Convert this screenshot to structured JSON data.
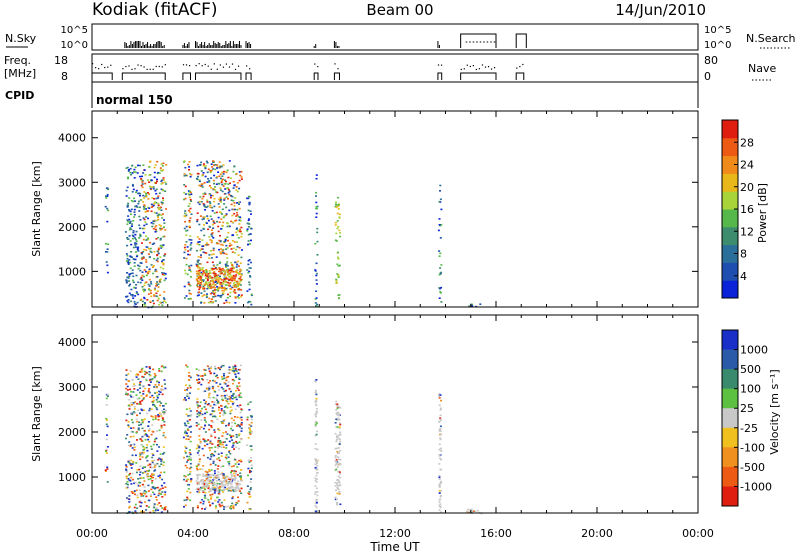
{
  "header": {
    "radar": "Kodiak (fitACF)",
    "beam": "Beam 00",
    "date": "14/Jun/2010"
  },
  "strip_labels": {
    "nsky": "N.Sky",
    "freq_line1": "Freq.",
    "freq_line2": "[MHz]",
    "cpid": "CPID",
    "nsearch": "N.Search",
    "nave": "Nave",
    "cpid_value": "normal 150"
  },
  "strip_ticks": {
    "nsky_left": [
      "10^5",
      "10^0"
    ],
    "nsky_right": [
      "10^5",
      "10^0"
    ],
    "freq_left": [
      "18",
      "8"
    ],
    "nave_right": [
      "80",
      "0"
    ]
  },
  "colors": {
    "power": [
      "#0a22d8",
      "#1e4fb0",
      "#2a6e9a",
      "#3d8c6e",
      "#56b84a",
      "#a8d43a",
      "#e8b81a",
      "#f08a1a",
      "#ec5a14",
      "#e01e10"
    ],
    "velocity": [
      "#1a2fc8",
      "#2a5aa8",
      "#3a8a6e",
      "#5cc040",
      "#c8c8c8",
      "#f0c01e",
      "#f0901e",
      "#ec5a14",
      "#e01e10"
    ]
  },
  "chart_data": [
    {
      "type": "heatmap",
      "panel": "power",
      "xlabel": "",
      "ylabel": "Slant Range [km]",
      "ylim": [
        200,
        4600
      ],
      "xlim_hours": [
        0,
        24
      ],
      "yticks": [
        1000,
        2000,
        3000,
        4000
      ],
      "colorbar": {
        "label": "Power [dB]",
        "range": [
          0,
          32
        ],
        "ticks": [
          4,
          8,
          12,
          16,
          20,
          24,
          28
        ]
      },
      "scatter_regions": [
        {
          "t": [
            0.5,
            0.6
          ],
          "r": [
            900,
            2900
          ],
          "level": "low"
        },
        {
          "t": [
            1.3,
            1.9
          ],
          "r": [
            200,
            3400
          ],
          "level": "low"
        },
        {
          "t": [
            1.9,
            2.9
          ],
          "r": [
            200,
            3500
          ],
          "level": "mixed"
        },
        {
          "t": [
            3.6,
            3.9
          ],
          "r": [
            300,
            3500
          ],
          "level": "mixed"
        },
        {
          "t": [
            4.1,
            5.9
          ],
          "r": [
            300,
            3500
          ],
          "level": "mixed"
        },
        {
          "t": [
            4.1,
            5.9
          ],
          "r": [
            600,
            1100
          ],
          "level": "high"
        },
        {
          "t": [
            6.1,
            6.3
          ],
          "r": [
            200,
            2700
          ],
          "level": "low"
        },
        {
          "t": [
            8.8,
            8.9
          ],
          "r": [
            200,
            3200
          ],
          "level": "low"
        },
        {
          "t": [
            9.6,
            9.8
          ],
          "r": [
            400,
            2700
          ],
          "level": "mid"
        },
        {
          "t": [
            13.7,
            13.8
          ],
          "r": [
            200,
            3000
          ],
          "level": "low"
        },
        {
          "t": [
            14.8,
            15.4
          ],
          "r": [
            200,
            300
          ],
          "level": "low"
        }
      ]
    },
    {
      "type": "heatmap",
      "panel": "velocity",
      "xlabel": "Time UT",
      "ylabel": "Slant Range [km]",
      "ylim": [
        200,
        4600
      ],
      "xlim_hours": [
        0,
        24
      ],
      "yticks": [
        1000,
        2000,
        3000,
        4000
      ],
      "xtick_labels": [
        "00:00",
        "04:00",
        "08:00",
        "12:00",
        "16:00",
        "20:00",
        "00:00"
      ],
      "xtick_hours": [
        0,
        4,
        8,
        12,
        16,
        20,
        24
      ],
      "colorbar": {
        "label": "Velocity [m s⁻¹]",
        "tick_labels": [
          "1000",
          "500",
          "100",
          "25",
          "-25",
          "-100",
          "-500",
          "-1000"
        ]
      },
      "scatter_regions": [
        {
          "t": [
            0.5,
            0.6
          ],
          "r": [
            900,
            2900
          ],
          "level": "mixed"
        },
        {
          "t": [
            1.3,
            1.9
          ],
          "r": [
            200,
            3400
          ],
          "level": "mixed"
        },
        {
          "t": [
            1.9,
            2.9
          ],
          "r": [
            200,
            3500
          ],
          "level": "mixed"
        },
        {
          "t": [
            3.6,
            3.9
          ],
          "r": [
            300,
            3500
          ],
          "level": "mixed"
        },
        {
          "t": [
            4.1,
            5.9
          ],
          "r": [
            300,
            3500
          ],
          "level": "mixed"
        },
        {
          "t": [
            4.1,
            5.9
          ],
          "r": [
            700,
            1100
          ],
          "level": "gray"
        },
        {
          "t": [
            6.1,
            6.3
          ],
          "r": [
            200,
            2700
          ],
          "level": "mixed"
        },
        {
          "t": [
            8.8,
            8.9
          ],
          "r": [
            200,
            3200
          ],
          "level": "gray"
        },
        {
          "t": [
            9.6,
            9.8
          ],
          "r": [
            400,
            2700
          ],
          "level": "gray"
        },
        {
          "t": [
            13.7,
            13.8
          ],
          "r": [
            200,
            3000
          ],
          "level": "gray"
        },
        {
          "t": [
            14.8,
            15.4
          ],
          "r": [
            200,
            300
          ],
          "level": "gray"
        }
      ]
    }
  ]
}
